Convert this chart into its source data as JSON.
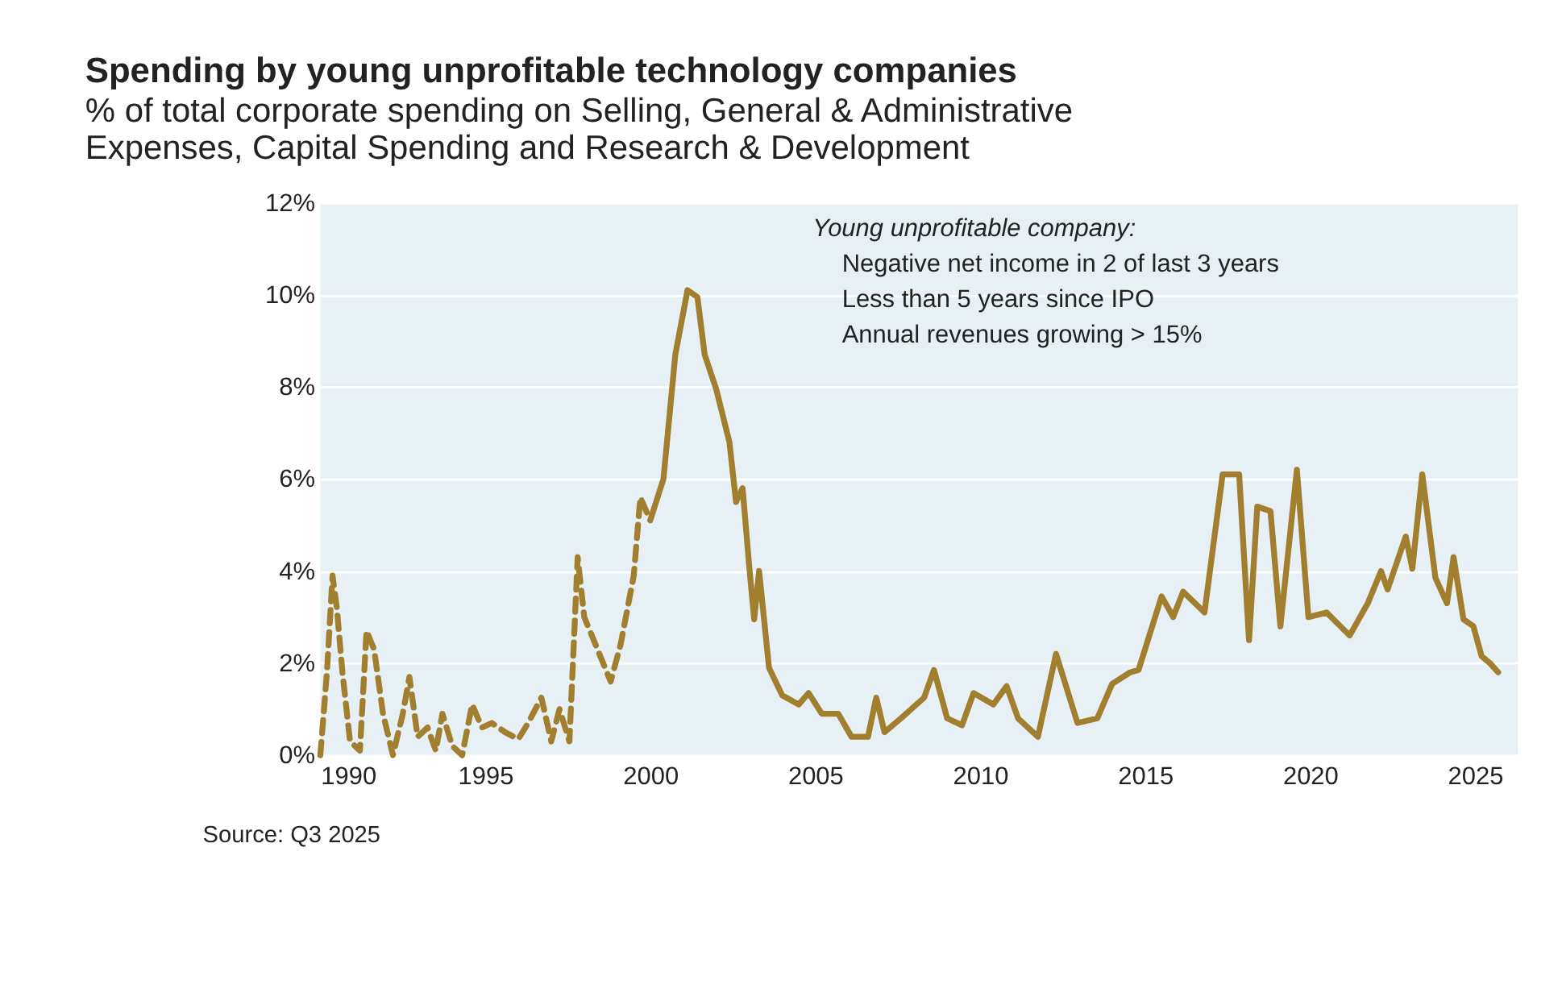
{
  "chart_data": {
    "type": "line",
    "title": "Spending by young unprofitable technology companies",
    "subtitle": "% of total corporate spending on Selling, General & Administrative Expenses, Capital Spending and Research & Development",
    "annotations": [
      "Young unprofitable company:",
      "Negative net income in 2 of last 3 years",
      "Less than 5 years since IPO",
      "Annual revenues growing > 15%",
      "Source: Q3 2025"
    ],
    "series": [
      {
        "color": "#a27f2e",
        "line_style": "dashed",
        "x": [
          1990.0,
          1990.2,
          1990.37,
          1990.5,
          1990.67,
          1990.9,
          1991.2,
          1991.4,
          1991.63,
          1991.9,
          1992.2,
          1992.5,
          1992.7,
          1992.95,
          1993.25,
          1993.5,
          1993.7,
          1994.0,
          1994.3,
          1994.6,
          1994.9,
          1995.2,
          1995.6,
          1996.0,
          1996.3,
          1996.7,
          1997.0,
          1997.25,
          1997.55,
          1997.8,
          1998.0,
          1998.4,
          1998.8,
          1999.1,
          1999.5,
          1999.7,
          2000.0
        ],
        "values": [
          0.0,
          1.8,
          3.9,
          3.2,
          1.8,
          0.3,
          0.1,
          2.7,
          2.3,
          0.9,
          0.0,
          0.9,
          1.7,
          0.4,
          0.6,
          0.1,
          0.9,
          0.2,
          0.0,
          1.1,
          0.6,
          0.7,
          0.5,
          0.35,
          0.7,
          1.25,
          0.3,
          1.0,
          0.3,
          4.3,
          3.0,
          2.3,
          1.6,
          2.4,
          3.9,
          5.6,
          5.1
        ]
      },
      {
        "color": "#a27f2e",
        "line_style": "solid",
        "x": [
          2000.0,
          2000.4,
          2000.76,
          2001.13,
          2001.43,
          2001.65,
          2002.0,
          2002.4,
          2002.6,
          2002.8,
          2003.0,
          2003.15,
          2003.3,
          2003.6,
          2004.0,
          2004.5,
          2004.8,
          2005.2,
          2005.7,
          2006.1,
          2006.6,
          2006.85,
          2007.1,
          2007.6,
          2008.3,
          2008.6,
          2009.0,
          2009.45,
          2009.8,
          2010.4,
          2010.8,
          2011.15,
          2011.75,
          2012.3,
          2012.95,
          2013.55,
          2014.0,
          2014.55,
          2014.8,
          2015.5,
          2015.85,
          2016.15,
          2016.8,
          2017.35,
          2017.85,
          2018.15,
          2018.4,
          2018.8,
          2019.1,
          2019.6,
          2019.95,
          2020.5,
          2021.2,
          2021.75,
          2022.15,
          2022.35,
          2022.9,
          2023.1,
          2023.4,
          2023.8,
          2024.15,
          2024.35,
          2024.65,
          2024.95,
          2025.2,
          2025.45,
          2025.7
        ],
        "values": [
          5.1,
          6.0,
          8.7,
          10.1,
          9.95,
          8.7,
          7.95,
          6.8,
          5.5,
          5.8,
          4.1,
          2.95,
          4.0,
          1.9,
          1.3,
          1.1,
          1.35,
          0.9,
          0.9,
          0.4,
          0.4,
          1.25,
          0.5,
          0.8,
          1.25,
          1.85,
          0.8,
          0.65,
          1.35,
          1.1,
          1.5,
          0.8,
          0.4,
          2.2,
          0.7,
          0.8,
          1.55,
          1.8,
          1.85,
          3.45,
          3.0,
          3.55,
          3.1,
          6.1,
          6.1,
          2.5,
          5.4,
          5.3,
          2.8,
          6.2,
          3.0,
          3.1,
          2.6,
          3.3,
          4.0,
          3.6,
          4.75,
          4.05,
          6.1,
          3.85,
          3.3,
          4.3,
          2.95,
          2.8,
          2.15,
          2.0,
          1.8
        ]
      }
    ],
    "xlim": [
      1990,
      2026.3
    ],
    "xticks": [
      1990,
      1995,
      2000,
      2005,
      2010,
      2015,
      2020,
      2025
    ],
    "ylim": [
      0,
      12
    ],
    "yticks": [
      {
        "value": 0,
        "label": "0%"
      },
      {
        "value": 2,
        "label": "2%"
      },
      {
        "value": 4,
        "label": "4%"
      },
      {
        "value": 6,
        "label": "6%"
      },
      {
        "value": 8,
        "label": "8%"
      },
      {
        "value": 10,
        "label": "10%"
      },
      {
        "value": 12,
        "label": "12%"
      }
    ],
    "grid": "y"
  }
}
